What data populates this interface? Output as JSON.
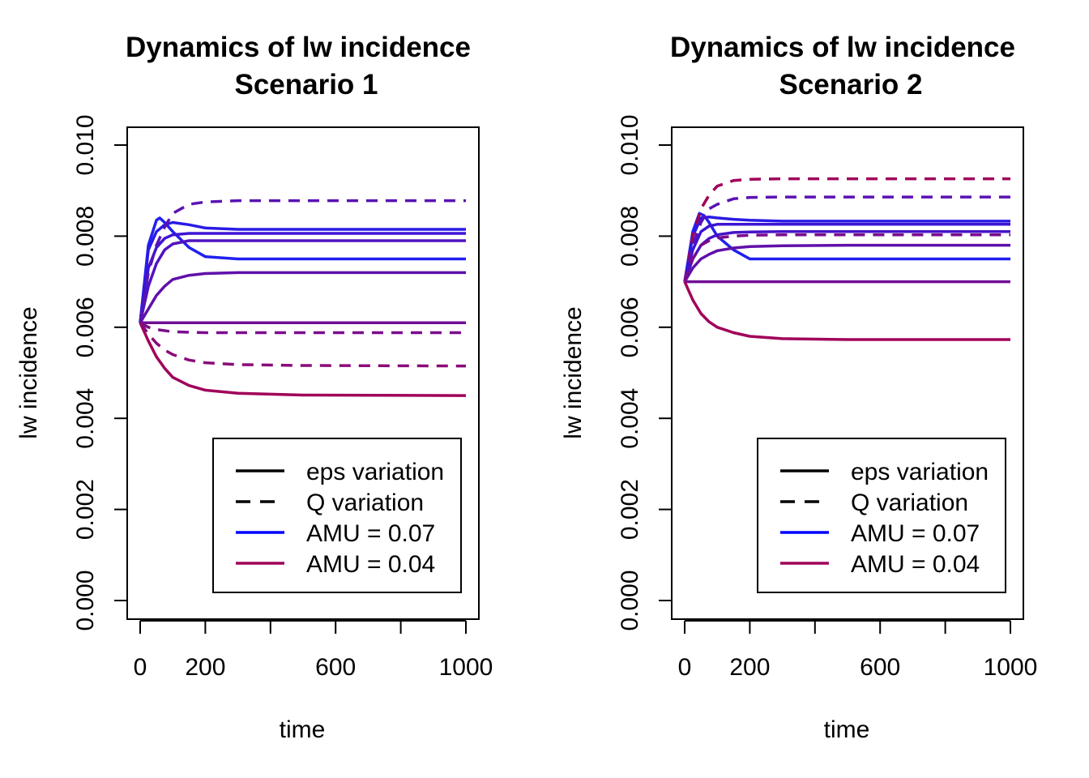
{
  "chart_data": [
    {
      "type": "line",
      "title": "Dynamics of lw incidence",
      "subtitle": "Scenario 1",
      "xlabel": "time",
      "ylabel": "lw incidence",
      "xlim": [
        0,
        1000
      ],
      "ylim": [
        0,
        0.01
      ],
      "x_ticks": [
        0,
        200,
        400,
        600,
        800,
        1000
      ],
      "x_tick_labels": [
        "0",
        "200",
        "",
        "600",
        "",
        "1000"
      ],
      "y_ticks": [
        0,
        0.002,
        0.004,
        0.006,
        0.008,
        0.01
      ],
      "y_tick_labels": [
        "0.000",
        "0.002",
        "0.004",
        "0.006",
        "0.008",
        "0.010"
      ],
      "grid": false,
      "legend_position": "bottom-right",
      "legend": [
        {
          "label": "eps variation",
          "color": "#000000",
          "dash": "solid"
        },
        {
          "label": "Q variation",
          "color": "#000000",
          "dash": "dashed"
        },
        {
          "label": "AMU = 0.07",
          "color": "#0000ff",
          "dash": "solid"
        },
        {
          "label": "AMU = 0.04",
          "color": "#a0005a",
          "dash": "solid"
        }
      ],
      "series": [
        {
          "color": "#2020f0",
          "dash": "solid",
          "x": [
            0,
            25,
            50,
            60,
            75,
            100,
            150,
            200,
            300,
            500,
            1000
          ],
          "y": [
            0.0061,
            0.0078,
            0.00835,
            0.0084,
            0.0083,
            0.0081,
            0.00775,
            0.00755,
            0.0075,
            0.0075,
            0.0075
          ]
        },
        {
          "color": "#2a1ae6",
          "dash": "solid",
          "x": [
            0,
            25,
            50,
            75,
            100,
            150,
            200,
            300,
            500,
            1000
          ],
          "y": [
            0.0061,
            0.0077,
            0.0081,
            0.00825,
            0.0083,
            0.00825,
            0.00818,
            0.00815,
            0.00815,
            0.00815
          ]
        },
        {
          "color": "#3c14d4",
          "dash": "solid",
          "x": [
            0,
            25,
            50,
            75,
            100,
            150,
            200,
            300,
            500,
            1000
          ],
          "y": [
            0.0061,
            0.0073,
            0.00775,
            0.00795,
            0.00803,
            0.00806,
            0.00806,
            0.00806,
            0.00806,
            0.00806
          ]
        },
        {
          "color": "#5012c0",
          "dash": "solid",
          "x": [
            0,
            25,
            50,
            75,
            100,
            150,
            200,
            300,
            500,
            1000
          ],
          "y": [
            0.0061,
            0.0069,
            0.0074,
            0.0077,
            0.00783,
            0.0079,
            0.0079,
            0.0079,
            0.0079,
            0.0079
          ]
        },
        {
          "color": "#6010aa",
          "dash": "solid",
          "x": [
            0,
            25,
            50,
            75,
            100,
            150,
            200,
            300,
            500,
            1000
          ],
          "y": [
            0.0061,
            0.0064,
            0.0067,
            0.0069,
            0.00705,
            0.00714,
            0.00718,
            0.0072,
            0.0072,
            0.0072
          ]
        },
        {
          "color": "#700e96",
          "dash": "solid",
          "x": [
            0,
            1000
          ],
          "y": [
            0.0061,
            0.0061
          ]
        },
        {
          "color": "#a0005a",
          "dash": "solid",
          "x": [
            0,
            25,
            50,
            75,
            100,
            150,
            200,
            300,
            500,
            1000
          ],
          "y": [
            0.0061,
            0.0057,
            0.00535,
            0.0051,
            0.0049,
            0.00472,
            0.00462,
            0.00455,
            0.00451,
            0.0045
          ]
        },
        {
          "color": "#5a12b4",
          "dash": "dashed",
          "x": [
            0,
            25,
            50,
            75,
            100,
            150,
            200,
            300,
            500,
            1000
          ],
          "y": [
            0.0061,
            0.0072,
            0.0078,
            0.0082,
            0.0085,
            0.0087,
            0.00875,
            0.00878,
            0.00878,
            0.00878
          ]
        },
        {
          "color": "#7a0c8c",
          "dash": "dashed",
          "x": [
            0,
            25,
            50,
            100,
            200,
            500,
            1000
          ],
          "y": [
            0.0061,
            0.006,
            0.00595,
            0.0059,
            0.00588,
            0.00588,
            0.00588
          ]
        },
        {
          "color": "#8a0a78",
          "dash": "dashed",
          "x": [
            0,
            25,
            50,
            75,
            100,
            150,
            200,
            300,
            500,
            1000
          ],
          "y": [
            0.0061,
            0.00585,
            0.00565,
            0.0055,
            0.0054,
            0.00528,
            0.00522,
            0.00518,
            0.00516,
            0.00515
          ]
        }
      ]
    },
    {
      "type": "line",
      "title": "Dynamics of lw incidence",
      "subtitle": "Scenario 2",
      "xlabel": "time",
      "ylabel": "lw incidence",
      "xlim": [
        0,
        1000
      ],
      "ylim": [
        0,
        0.01
      ],
      "x_ticks": [
        0,
        200,
        400,
        600,
        800,
        1000
      ],
      "x_tick_labels": [
        "0",
        "200",
        "",
        "600",
        "",
        "1000"
      ],
      "y_ticks": [
        0,
        0.002,
        0.004,
        0.006,
        0.008,
        0.01
      ],
      "y_tick_labels": [
        "0.000",
        "0.002",
        "0.004",
        "0.006",
        "0.008",
        "0.010"
      ],
      "grid": false,
      "legend_position": "bottom-right",
      "legend": [
        {
          "label": "eps variation",
          "color": "#000000",
          "dash": "solid"
        },
        {
          "label": "Q variation",
          "color": "#000000",
          "dash": "dashed"
        },
        {
          "label": "AMU = 0.07",
          "color": "#0000ff",
          "dash": "solid"
        },
        {
          "label": "AMU = 0.04",
          "color": "#a0005a",
          "dash": "solid"
        }
      ],
      "series": [
        {
          "color": "#2020f0",
          "dash": "solid",
          "x": [
            0,
            25,
            45,
            60,
            75,
            100,
            150,
            200,
            300,
            500,
            1000
          ],
          "y": [
            0.007,
            0.0081,
            0.0085,
            0.00845,
            0.0083,
            0.008,
            0.0077,
            0.0075,
            0.0075,
            0.0075,
            0.0075
          ]
        },
        {
          "color": "#2a1ae6",
          "dash": "solid",
          "x": [
            0,
            25,
            50,
            75,
            100,
            150,
            200,
            300,
            500,
            1000
          ],
          "y": [
            0.007,
            0.008,
            0.0084,
            0.00842,
            0.0084,
            0.00837,
            0.00835,
            0.00833,
            0.00833,
            0.00833
          ]
        },
        {
          "color": "#3c14d4",
          "dash": "solid",
          "x": [
            0,
            25,
            50,
            75,
            100,
            150,
            200,
            300,
            500,
            1000
          ],
          "y": [
            0.007,
            0.0077,
            0.0081,
            0.00822,
            0.00826,
            0.00826,
            0.00826,
            0.00826,
            0.00826,
            0.00826
          ]
        },
        {
          "color": "#4812c8",
          "dash": "solid",
          "x": [
            0,
            25,
            50,
            75,
            100,
            150,
            200,
            300,
            500,
            1000
          ],
          "y": [
            0.007,
            0.0075,
            0.0078,
            0.00795,
            0.00803,
            0.00808,
            0.00809,
            0.0081,
            0.0081,
            0.0081
          ]
        },
        {
          "color": "#6010aa",
          "dash": "solid",
          "x": [
            0,
            25,
            50,
            75,
            100,
            150,
            200,
            300,
            500,
            1000
          ],
          "y": [
            0.007,
            0.0073,
            0.0075,
            0.0076,
            0.00768,
            0.00774,
            0.00777,
            0.00779,
            0.0078,
            0.0078
          ]
        },
        {
          "color": "#700e96",
          "dash": "solid",
          "x": [
            0,
            1000
          ],
          "y": [
            0.007,
            0.007
          ]
        },
        {
          "color": "#a0005a",
          "dash": "solid",
          "x": [
            0,
            25,
            50,
            75,
            100,
            150,
            200,
            300,
            500,
            1000
          ],
          "y": [
            0.007,
            0.0066,
            0.0063,
            0.00612,
            0.006,
            0.00588,
            0.0058,
            0.00575,
            0.00573,
            0.00573
          ]
        },
        {
          "color": "#a0005a",
          "dash": "dashed",
          "x": [
            0,
            25,
            50,
            75,
            100,
            150,
            200,
            300,
            500,
            1000
          ],
          "y": [
            0.007,
            0.008,
            0.0086,
            0.0089,
            0.0091,
            0.00922,
            0.00925,
            0.00926,
            0.00926,
            0.00926
          ]
        },
        {
          "color": "#5a12b4",
          "dash": "dashed",
          "x": [
            0,
            25,
            50,
            75,
            100,
            150,
            200,
            300,
            500,
            1000
          ],
          "y": [
            0.007,
            0.0078,
            0.0083,
            0.0086,
            0.0087,
            0.00882,
            0.00885,
            0.00886,
            0.00886,
            0.00886
          ]
        },
        {
          "color": "#7a0c8c",
          "dash": "dashed",
          "x": [
            0,
            25,
            50,
            75,
            100,
            150,
            200,
            300,
            500,
            1000
          ],
          "y": [
            0.007,
            0.0075,
            0.0078,
            0.0079,
            0.00796,
            0.008,
            0.00802,
            0.00803,
            0.00803,
            0.00803
          ]
        }
      ]
    }
  ]
}
